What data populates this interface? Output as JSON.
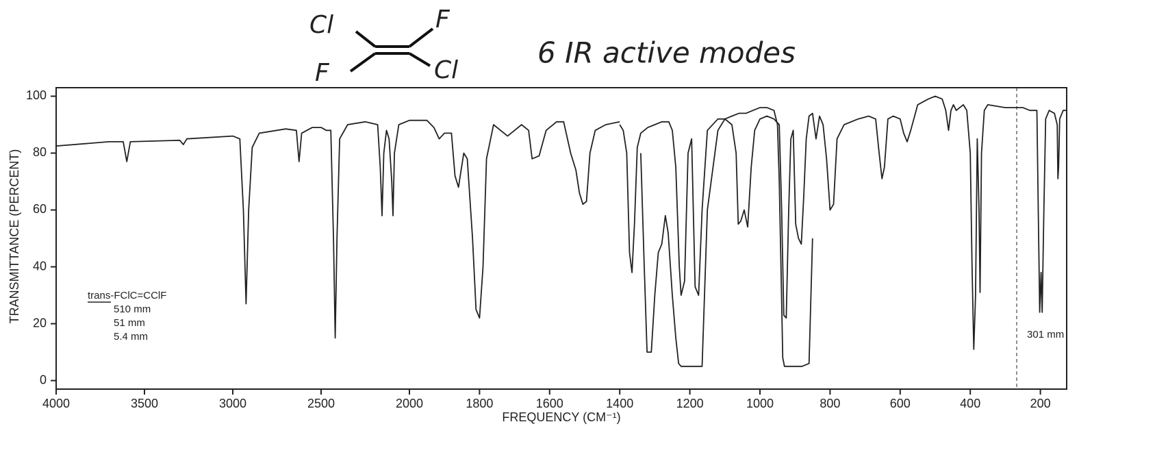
{
  "chart_data": {
    "type": "line",
    "annotations": [
      "Cl",
      "F",
      "F",
      "Cl",
      "6 IR active modes",
      "trans-FClC=CClF"
    ],
    "x_label": "FREQUENCY (CM⁻¹)",
    "y_label": "TRANSMITTANCE (PERCENT)",
    "xlim": [
      4000,
      125
    ],
    "x_scale_break": 2000,
    "xticks": [
      4000,
      3500,
      3000,
      2500,
      2000,
      1800,
      1600,
      1400,
      1200,
      1000,
      800,
      600,
      400,
      200
    ],
    "ylim": [
      -3,
      103
    ],
    "yticks": [
      0,
      20,
      40,
      60,
      80,
      100
    ],
    "series": [
      {
        "name": "510 mm",
        "color": "#222222",
        "x": [
          4000,
          3700,
          3620,
          3600,
          3580,
          3300,
          3280,
          3260,
          3000,
          2960,
          2940,
          2925,
          2910,
          2890,
          2850,
          2700,
          2640,
          2625,
          2610,
          2550,
          2500,
          2470,
          2445,
          2430,
          2420,
          2410,
          2395,
          2350,
          2250,
          2180,
          2165,
          2155,
          2145,
          2130,
          2115,
          2100,
          2093,
          2085,
          2060,
          2000,
          1950,
          1930,
          1915,
          1900,
          1880,
          1870,
          1860,
          1855,
          1845,
          1835,
          1820,
          1810,
          1800,
          1790,
          1780,
          1760,
          1740,
          1720,
          1700,
          1680,
          1660,
          1650,
          1630,
          1610,
          1580,
          1560,
          1540,
          1525,
          1515,
          1505,
          1495,
          1485,
          1470,
          1440,
          1400
        ],
        "values": [
          82.5,
          84,
          84,
          77,
          84,
          84.5,
          83,
          85,
          86,
          85,
          60,
          27,
          60,
          82,
          87,
          88.5,
          88,
          77,
          87,
          89,
          89,
          88,
          88,
          50,
          15,
          50,
          85,
          90,
          91,
          90,
          75,
          58,
          80,
          88,
          85,
          70,
          58,
          80,
          90,
          91.5,
          91.5,
          89,
          85,
          87,
          87,
          72,
          68,
          72,
          80,
          78,
          50,
          25,
          22,
          40,
          78,
          90,
          88,
          86,
          88,
          90,
          88,
          78,
          79,
          88,
          91,
          91,
          80,
          74,
          66,
          62,
          63,
          80,
          88,
          90,
          91
        ]
      },
      {
        "name": "51 mm",
        "color": "#222222",
        "x": [
          1400,
          1390,
          1380,
          1372,
          1365,
          1358,
          1350,
          1340,
          1320,
          1300,
          1280,
          1260,
          1250,
          1240,
          1230,
          1225,
          1215,
          1205,
          1195,
          1185,
          1175,
          1165,
          1150,
          1120,
          1100,
          1080,
          1068,
          1062,
          1055,
          1045,
          1035,
          1025,
          1015,
          1000,
          980,
          960,
          945,
          938,
          932,
          925,
          918,
          912,
          905,
          898,
          890,
          882,
          875,
          868,
          860,
          850,
          840,
          830,
          820,
          810,
          800,
          790,
          780,
          760,
          720,
          690,
          670,
          660,
          652,
          645,
          635,
          620,
          600,
          590,
          580,
          570,
          550,
          520,
          500,
          480,
          470,
          462,
          455,
          448,
          440,
          420,
          410,
          400,
          395,
          390,
          385,
          380,
          375,
          372,
          368,
          360,
          350,
          300,
          268
        ],
        "values": [
          90,
          88,
          80,
          45,
          38,
          55,
          82,
          87,
          89,
          90,
          91,
          91,
          88,
          75,
          40,
          30,
          35,
          80,
          85,
          33,
          30,
          60,
          88,
          92,
          92,
          90,
          80,
          55,
          56,
          60,
          54,
          75,
          88,
          92,
          93,
          92,
          90,
          60,
          23,
          22,
          60,
          85,
          88,
          55,
          50,
          48,
          65,
          85,
          93,
          94,
          85,
          93,
          90,
          78,
          60,
          62,
          85,
          90,
          92,
          93,
          92,
          80,
          71,
          75,
          92,
          93,
          92,
          87,
          84,
          88,
          97,
          99,
          100,
          99,
          95,
          88,
          95,
          97,
          95,
          97,
          95,
          80,
          40,
          11,
          30,
          85,
          60,
          31,
          80,
          95,
          97,
          96,
          96
        ]
      },
      {
        "name": "5.4 mm",
        "color": "#222222",
        "x": [
          1340,
          1330,
          1322,
          1310,
          1300,
          1290,
          1280,
          1270,
          1262,
          1250,
          1240,
          1232,
          1225,
          1215,
          1205,
          1195,
          1180,
          1165,
          1150,
          1120,
          1100,
          1080,
          1060,
          1040,
          1020,
          1000,
          980,
          960,
          950,
          945,
          940,
          935,
          930,
          920,
          900,
          880,
          860,
          850
        ],
        "values": [
          80,
          40,
          10,
          10,
          30,
          45,
          48,
          58,
          52,
          30,
          15,
          6,
          5,
          5,
          5,
          5,
          5,
          5,
          60,
          88,
          92,
          93,
          94,
          94,
          95,
          96,
          96,
          95,
          90,
          70,
          40,
          8,
          5,
          5,
          5,
          5,
          6,
          50
        ]
      },
      {
        "name": "301 mm",
        "color": "#222222",
        "x": [
          268,
          250,
          230,
          210,
          206,
          202,
          198,
          195,
          190,
          185,
          175,
          160,
          152,
          150,
          148,
          145,
          135,
          125
        ],
        "values": [
          96,
          96,
          95,
          95,
          60,
          24,
          38,
          24,
          60,
          92,
          95,
          94,
          90,
          71,
          75,
          92,
          95,
          95
        ]
      }
    ]
  }
}
